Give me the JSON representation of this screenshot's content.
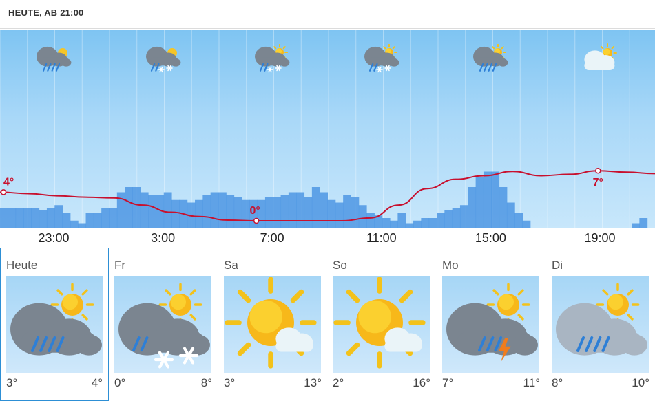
{
  "header": {
    "title": "HEUTE, AB 21:00"
  },
  "hourly": {
    "time_labels": [
      "23:00",
      "3:00",
      "7:00",
      "11:00",
      "15:00",
      "19:00"
    ],
    "icons": [
      {
        "icon": "cloud-sun-moon-rain-icon"
      },
      {
        "icon": "cloud-moon-snow-icon"
      },
      {
        "icon": "cloud-sun-snow-icon"
      },
      {
        "icon": "cloud-sun-snow-icon"
      },
      {
        "icon": "cloud-sun-rain-icon"
      },
      {
        "icon": "cloud-sun-icon"
      }
    ],
    "temp_labels": {
      "start": "4°",
      "min": "0°",
      "max": "7°"
    }
  },
  "chart_data": {
    "type": "line",
    "series": [
      {
        "values": [
          4,
          3.8,
          3.5,
          3.3,
          3.2,
          2.2,
          1.2,
          0.6,
          0.1,
          0,
          0,
          0,
          0,
          0.4,
          2.2,
          4.5,
          5.8,
          6.3,
          6.9,
          6.3,
          6.5,
          7,
          6.8,
          6.6
        ]
      }
    ],
    "precipitation": [
      8,
      8,
      8,
      8,
      8,
      7,
      8,
      9,
      6,
      3,
      2,
      6,
      6,
      8,
      8,
      14,
      16,
      16,
      14,
      13,
      13,
      14,
      11,
      11,
      10,
      11,
      13,
      14,
      14,
      13,
      12,
      11,
      11,
      11,
      12,
      12,
      13,
      14,
      14,
      12,
      16,
      14,
      11,
      10,
      13,
      12,
      9,
      6,
      5,
      4,
      3,
      6,
      2,
      3,
      4,
      4,
      6,
      7,
      8,
      9,
      16,
      20,
      22,
      22,
      16,
      10,
      6,
      3,
      0,
      0,
      0,
      0,
      0,
      0,
      0,
      0,
      0,
      0,
      0,
      0,
      0,
      2,
      4,
      0
    ],
    "colors": {
      "line": "#c8102e",
      "precip": "#4d97e3",
      "sky_top": "#7ec4f2",
      "sky_bottom": "#c8e7fb"
    }
  },
  "days": [
    {
      "name": "Heute",
      "min": "3°",
      "max": "4°",
      "icon": "cloud-sun-rain-icon",
      "selected": true
    },
    {
      "name": "Fr",
      "min": "0°",
      "max": "8°",
      "icon": "cloud-sun-rain-snow-icon"
    },
    {
      "name": "Sa",
      "min": "3°",
      "max": "13°",
      "icon": "sun-cloud-icon"
    },
    {
      "name": "So",
      "min": "2°",
      "max": "16°",
      "icon": "sun-cloud-icon"
    },
    {
      "name": "Mo",
      "min": "7°",
      "max": "11°",
      "icon": "cloud-sun-thunderstorm-icon"
    },
    {
      "name": "Di",
      "min": "8°",
      "max": "10°",
      "icon": "cloud-sun-rain-icon"
    }
  ]
}
